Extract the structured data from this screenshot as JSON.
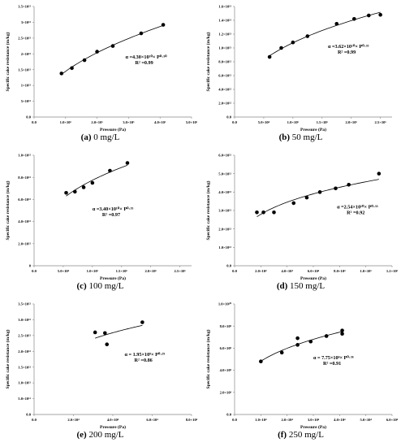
{
  "chart_data": [
    {
      "id": "a",
      "type": "scatter",
      "caption_letter": "(a)",
      "caption_text": " 0 mg/L",
      "xlabel": "Pressure (Pa)",
      "ylabel": "Specific cake resistance (m/kg)",
      "xlim": [
        0,
        5
      ],
      "ylim": [
        0,
        3.5
      ],
      "x_ticks": [
        {
          "v": 0,
          "label": "0.0"
        },
        {
          "v": 1,
          "label": "1.0×10⁵"
        },
        {
          "v": 2,
          "label": "2.0×10⁵"
        },
        {
          "v": 3,
          "label": "3.0×10⁵"
        },
        {
          "v": 4,
          "label": "4.0×10⁵"
        },
        {
          "v": 5,
          "label": "5.0×10⁵"
        }
      ],
      "y_ticks": [
        {
          "v": 0,
          "label": "0.0"
        },
        {
          "v": 0.5,
          "label": "5×10¹²"
        },
        {
          "v": 1.0,
          "label": "1×10¹³"
        },
        {
          "v": 1.5,
          "label": "1.5×10¹³"
        },
        {
          "v": 2.0,
          "label": "2×10¹³"
        },
        {
          "v": 2.5,
          "label": "2.5×10¹³"
        },
        {
          "v": 3.0,
          "label": "3×10¹³"
        },
        {
          "v": 3.5,
          "label": "3.5×10¹³"
        }
      ],
      "points": [
        [
          0.87,
          1.38
        ],
        [
          1.2,
          1.55
        ],
        [
          1.6,
          1.8
        ],
        [
          2.0,
          2.07
        ],
        [
          2.5,
          2.25
        ],
        [
          3.4,
          2.65
        ],
        [
          4.1,
          2.92
        ]
      ],
      "fit": {
        "a": 1.47,
        "b": 0.5,
        "x0": 0.87
      },
      "eq_line1": "α =4.30×10¹⁰× P⁰·⁵⁰",
      "eq_line2": "R² =0.99",
      "eq_pos": [
        2.9,
        1.85
      ]
    },
    {
      "id": "b",
      "type": "scatter",
      "caption_letter": "(b)",
      "caption_text": " 50 mg/L",
      "xlabel": "Pressure (Pa)",
      "ylabel": "Specific cake resistance (m/kg)",
      "xlim": [
        0,
        2.7
      ],
      "ylim": [
        0,
        1.6
      ],
      "x_ticks": [
        {
          "v": 0,
          "label": "0.0"
        },
        {
          "v": 0.5,
          "label": "5.0×10⁴"
        },
        {
          "v": 1.0,
          "label": "1.0×10⁵"
        },
        {
          "v": 1.5,
          "label": "1.5×10⁵"
        },
        {
          "v": 2.0,
          "label": "2.0×10⁵"
        },
        {
          "v": 2.5,
          "label": "2.5×10⁵"
        }
      ],
      "y_ticks": [
        {
          "v": 0,
          "label": "0.0"
        },
        {
          "v": 0.2,
          "label": "2.0×10¹²"
        },
        {
          "v": 0.4,
          "label": "4.0×10¹²"
        },
        {
          "v": 0.6,
          "label": "6.0×10¹²"
        },
        {
          "v": 0.8,
          "label": "8.0×10¹²"
        },
        {
          "v": 1.0,
          "label": "1.0×10¹³"
        },
        {
          "v": 1.2,
          "label": "1.2×10¹³"
        },
        {
          "v": 1.4,
          "label": "1.4×10¹³"
        },
        {
          "v": 1.6,
          "label": "1.6×10¹³"
        }
      ],
      "points": [
        [
          0.6,
          0.87
        ],
        [
          0.8,
          1.0
        ],
        [
          1.0,
          1.08
        ],
        [
          1.25,
          1.17
        ],
        [
          1.75,
          1.35
        ],
        [
          2.05,
          1.42
        ],
        [
          2.3,
          1.47
        ],
        [
          2.5,
          1.48
        ]
      ],
      "fit": {
        "a": 0.9,
        "b": 0.55,
        "x0": 0.6
      },
      "eq_line1": "α =3.62×10¹⁰× P⁰·³⁵",
      "eq_line2": "R² =0.99",
      "eq_pos": [
        1.6,
        1.0
      ]
    },
    {
      "id": "c",
      "type": "scatter",
      "caption_letter": "(c)",
      "caption_text": " 100 mg/L",
      "xlabel": "Pressure (Pa)",
      "ylabel": "Specific cake resistance (m/kg)",
      "xlim": [
        0,
        2.7
      ],
      "ylim": [
        0,
        1.0
      ],
      "x_ticks": [
        {
          "v": 0,
          "label": "0.0"
        },
        {
          "v": 0.5,
          "label": "5.0×10⁴"
        },
        {
          "v": 1.0,
          "label": "1.0×10⁵"
        },
        {
          "v": 1.5,
          "label": "1.5×10⁵"
        },
        {
          "v": 2.0,
          "label": "2.0×10⁵"
        },
        {
          "v": 2.5,
          "label": "2.5×10⁵"
        }
      ],
      "y_ticks": [
        {
          "v": 0,
          "label": "0"
        },
        {
          "v": 0.2,
          "label": "2.0×10¹²"
        },
        {
          "v": 0.4,
          "label": "4.0×10¹²"
        },
        {
          "v": 0.6,
          "label": "6.0×10¹²"
        },
        {
          "v": 0.8,
          "label": "8.0×10¹²"
        },
        {
          "v": 1.0,
          "label": "1.0×10¹³"
        }
      ],
      "points": [
        [
          0.55,
          0.66
        ],
        [
          0.7,
          0.67
        ],
        [
          0.85,
          0.71
        ],
        [
          1.0,
          0.75
        ],
        [
          1.3,
          0.86
        ],
        [
          1.6,
          0.93
        ]
      ],
      "fit": {
        "a": 0.65,
        "b": 0.55,
        "x0": 0.55
      },
      "eq_line1": "α =3.40×10¹⁰× P⁰·³⁵",
      "eq_line2": "R² =0.97",
      "eq_pos": [
        1.0,
        0.5
      ]
    },
    {
      "id": "d",
      "type": "scatter",
      "caption_letter": "(d)",
      "caption_text": " 150 mg/L",
      "xlabel": "Pressure (Pa)",
      "ylabel": "Specific cake resistance (m/kg)",
      "xlim": [
        0,
        1.2
      ],
      "ylim": [
        0,
        6.0
      ],
      "x_ticks": [
        {
          "v": 0,
          "label": "0.0"
        },
        {
          "v": 0.2,
          "label": "2.0×10⁴"
        },
        {
          "v": 0.4,
          "label": "4.0×10⁴"
        },
        {
          "v": 0.6,
          "label": "6.0×10⁴"
        },
        {
          "v": 0.8,
          "label": "8.0×10⁴"
        },
        {
          "v": 1.0,
          "label": "1.0×10⁵"
        },
        {
          "v": 1.2,
          "label": "1.2×10⁵"
        }
      ],
      "y_ticks": [
        {
          "v": 0,
          "label": "0.0"
        },
        {
          "v": 1,
          "label": "1.0×10¹²"
        },
        {
          "v": 2,
          "label": "2.0×10¹²"
        },
        {
          "v": 3,
          "label": "3.0×10¹²"
        },
        {
          "v": 4,
          "label": "4.0×10¹²"
        },
        {
          "v": 5,
          "label": "5.0×10¹²"
        },
        {
          "v": 6,
          "label": "6.0×10¹²"
        }
      ],
      "points": [
        [
          0.17,
          2.9
        ],
        [
          0.22,
          2.9
        ],
        [
          0.3,
          2.9
        ],
        [
          0.45,
          3.4
        ],
        [
          0.55,
          3.7
        ],
        [
          0.65,
          4.0
        ],
        [
          0.77,
          4.2
        ],
        [
          0.87,
          4.4
        ],
        [
          1.1,
          5.0
        ]
      ],
      "fit": {
        "a": 2.6,
        "b": 0.55,
        "x0": 0.17
      },
      "eq_line1": "α =2.54×10¹⁰× P⁰·³³",
      "eq_line2": "R² =0.92",
      "eq_pos": [
        0.78,
        3.1
      ]
    },
    {
      "id": "e",
      "type": "scatter",
      "caption_letter": "(e)",
      "caption_text": " 200 mg/L",
      "xlabel": "Pressure (Pa)",
      "ylabel": "Specific cake resistance (m/kg)",
      "xlim": [
        0,
        8
      ],
      "ylim": [
        0,
        3.5
      ],
      "x_ticks": [
        {
          "v": 0,
          "label": "0.0"
        },
        {
          "v": 2,
          "label": "2.0×10⁴"
        },
        {
          "v": 4,
          "label": "4.0×10⁴"
        },
        {
          "v": 6,
          "label": "6.0×10⁴"
        },
        {
          "v": 8,
          "label": "8.0×10⁴"
        }
      ],
      "y_ticks": [
        {
          "v": 0,
          "label": "0.0"
        },
        {
          "v": 0.5,
          "label": "5.0×10¹¹"
        },
        {
          "v": 1.0,
          "label": "1.0×10¹²"
        },
        {
          "v": 1.5,
          "label": "1.5×10¹²"
        },
        {
          "v": 2.0,
          "label": "2.0×10¹²"
        },
        {
          "v": 2.5,
          "label": "2.5×10¹²"
        },
        {
          "v": 3.0,
          "label": "3.0×10¹²"
        },
        {
          "v": 3.5,
          "label": "3.5×10¹²"
        }
      ],
      "points": [
        [
          3.1,
          2.6
        ],
        [
          3.6,
          2.58
        ],
        [
          3.7,
          2.22
        ],
        [
          5.5,
          2.92
        ]
      ],
      "fit": {
        "a": 2.45,
        "b": 0.55,
        "x0": 3.1
      },
      "eq_line1": "α = 1.95×10⁹× P⁰·²⁹",
      "eq_line2": "R² =0.86",
      "eq_pos": [
        4.6,
        1.85
      ]
    },
    {
      "id": "f",
      "type": "scatter",
      "caption_letter": "(f)",
      "caption_text": " 250 mg/L",
      "xlabel": "Pressure (Pa)",
      "ylabel": "Specific cake resistance (m/kg)",
      "xlim": [
        0,
        6
      ],
      "ylim": [
        0,
        10
      ],
      "x_ticks": [
        {
          "v": 0,
          "label": "0.0"
        },
        {
          "v": 1,
          "label": "1.0×10⁴"
        },
        {
          "v": 2,
          "label": "2.0×10⁴"
        },
        {
          "v": 3,
          "label": "3.0×10⁴"
        },
        {
          "v": 4,
          "label": "4.0×10⁴"
        },
        {
          "v": 5,
          "label": "5.0×10⁴"
        },
        {
          "v": 6,
          "label": "6.0×10⁴"
        }
      ],
      "y_ticks": [
        {
          "v": 0,
          "label": "0.0"
        },
        {
          "v": 2,
          "label": "2.0×10⁹"
        },
        {
          "v": 4,
          "label": "4.0×10⁹"
        },
        {
          "v": 6,
          "label": "6.0×10⁹"
        },
        {
          "v": 8,
          "label": "8.0×10⁹"
        },
        {
          "v": 10,
          "label": "1.0×10¹⁰"
        }
      ],
      "points": [
        [
          1.0,
          4.8
        ],
        [
          1.8,
          5.6
        ],
        [
          2.4,
          6.3
        ],
        [
          2.4,
          6.9
        ],
        [
          2.9,
          6.6
        ],
        [
          3.5,
          7.1
        ],
        [
          4.1,
          7.3
        ],
        [
          4.1,
          7.6
        ]
      ],
      "fit": {
        "a": 4.9,
        "b": 0.55,
        "x0": 1.0
      },
      "eq_line1": "α = 7.75×10⁸× P⁰·³⁶",
      "eq_line2": "R² =0.91",
      "eq_pos": [
        3.0,
        5.0
      ]
    }
  ]
}
